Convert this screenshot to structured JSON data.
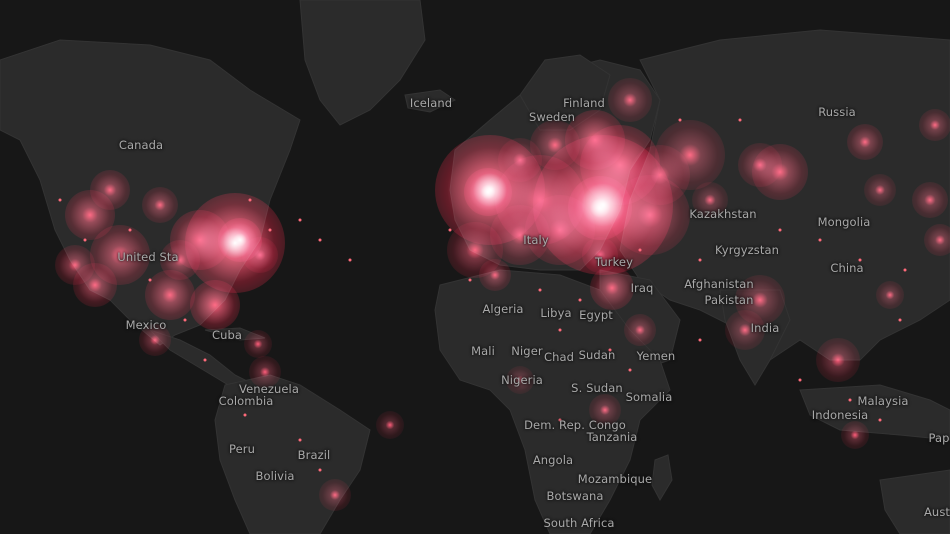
{
  "map": {
    "theme": {
      "ocean": "#171717",
      "land": "#2b2b2b",
      "label_color": "#a9a9a9",
      "heat_core": "#ffffff",
      "heat_mid": "#ff4d6d",
      "heat_outer": "#c8102e"
    },
    "labels": {
      "iceland": "Iceland",
      "finland": "Finland",
      "sweden": "Sweden",
      "russia": "Russia",
      "canada": "Canada",
      "united_states": "United Sta",
      "mexico": "Mexico",
      "cuba": "Cuba",
      "venezuela": "Venezuela",
      "colombia": "Colombia",
      "peru": "Peru",
      "brazil": "Brazil",
      "bolivia": "Bolivia",
      "italy": "Italy",
      "turkey": "Turkey",
      "kazakhstan": "Kazakhstan",
      "mongolia": "Mongolia",
      "kyrgyzstan": "Kyrgyzstan",
      "china": "China",
      "afghanistan": "Afghanistan",
      "pakistan": "Pakistan",
      "iraq": "Iraq",
      "india": "India",
      "algeria": "Algeria",
      "libya": "Libya",
      "egypt": "Egypt",
      "mali": "Mali",
      "niger": "Niger",
      "chad": "Chad",
      "sudan": "Sudan",
      "yemen": "Yemen",
      "nigeria": "Nigeria",
      "s_sudan": "S. Sudan",
      "somalia": "Somalia",
      "dem_rep_congo": "Dem. Rep. Congo",
      "tanzania": "Tanzania",
      "angola": "Angola",
      "mozambique": "Mozambique",
      "botswana": "Botswana",
      "south_africa": "South Africa",
      "malaysia": "Malaysia",
      "indonesia": "Indonesia",
      "papua_partial": "Pap",
      "australia_partial": "Aust"
    }
  }
}
